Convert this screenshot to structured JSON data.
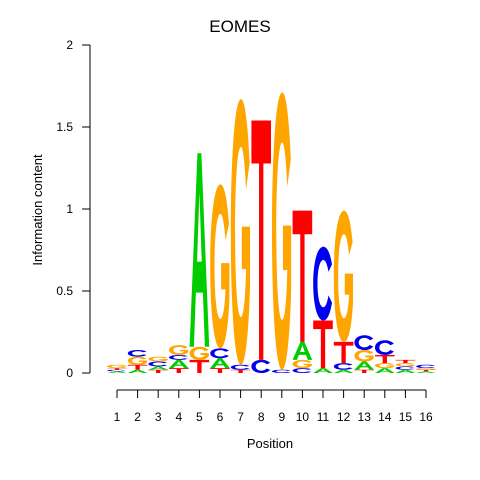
{
  "chart_data": {
    "type": "sequence-logo",
    "title": "EOMES",
    "xlabel": "Position",
    "ylabel": "Information content",
    "ylim": [
      0,
      2
    ],
    "yticks": [
      "0",
      "0.5",
      "1",
      "1.5",
      "2"
    ],
    "positions": [
      "1",
      "2",
      "3",
      "4",
      "5",
      "6",
      "7",
      "8",
      "9",
      "10",
      "11",
      "12",
      "13",
      "14",
      "15",
      "16"
    ],
    "colors": {
      "A": "#00cc00",
      "C": "#0000ee",
      "G": "#ffa500",
      "T": "#ff0000"
    },
    "stacks": [
      [
        {
          "l": "A",
          "v": 0.01
        },
        {
          "l": "C",
          "v": 0.01
        },
        {
          "l": "T",
          "v": 0.01
        },
        {
          "l": "G",
          "v": 0.02
        }
      ],
      [
        {
          "l": "A",
          "v": 0.02
        },
        {
          "l": "T",
          "v": 0.03
        },
        {
          "l": "G",
          "v": 0.05
        },
        {
          "l": "C",
          "v": 0.04
        }
      ],
      [
        {
          "l": "T",
          "v": 0.02
        },
        {
          "l": "A",
          "v": 0.02
        },
        {
          "l": "C",
          "v": 0.03
        },
        {
          "l": "G",
          "v": 0.03
        }
      ],
      [
        {
          "l": "T",
          "v": 0.03
        },
        {
          "l": "A",
          "v": 0.05
        },
        {
          "l": "C",
          "v": 0.03
        },
        {
          "l": "G",
          "v": 0.06
        }
      ],
      [
        {
          "l": "T",
          "v": 0.08
        },
        {
          "l": "G",
          "v": 0.08
        },
        {
          "l": "A",
          "v": 1.18
        }
      ],
      [
        {
          "l": "T",
          "v": 0.03
        },
        {
          "l": "A",
          "v": 0.06
        },
        {
          "l": "C",
          "v": 0.06
        },
        {
          "l": "G",
          "v": 1.0
        }
      ],
      [
        {
          "l": "T",
          "v": 0.02
        },
        {
          "l": "C",
          "v": 0.03
        },
        {
          "l": "G",
          "v": 1.62
        }
      ],
      [
        {
          "l": "C",
          "v": 0.08
        },
        {
          "l": "T",
          "v": 1.46
        }
      ],
      [
        {
          "l": "C",
          "v": 0.02
        },
        {
          "l": "G",
          "v": 1.69
        }
      ],
      [
        {
          "l": "C",
          "v": 0.03
        },
        {
          "l": "G",
          "v": 0.05
        },
        {
          "l": "A",
          "v": 0.11
        },
        {
          "l": "T",
          "v": 0.8
        }
      ],
      [
        {
          "l": "A",
          "v": 0.03
        },
        {
          "l": "T",
          "v": 0.29
        },
        {
          "l": "C",
          "v": 0.45
        }
      ],
      [
        {
          "l": "A",
          "v": 0.02
        },
        {
          "l": "C",
          "v": 0.04
        },
        {
          "l": "T",
          "v": 0.13
        },
        {
          "l": "G",
          "v": 0.8
        }
      ],
      [
        {
          "l": "T",
          "v": 0.02
        },
        {
          "l": "A",
          "v": 0.05
        },
        {
          "l": "G",
          "v": 0.07
        },
        {
          "l": "C",
          "v": 0.09
        }
      ],
      [
        {
          "l": "A",
          "v": 0.03
        },
        {
          "l": "G",
          "v": 0.03
        },
        {
          "l": "T",
          "v": 0.05
        },
        {
          "l": "C",
          "v": 0.09
        }
      ],
      [
        {
          "l": "A",
          "v": 0.02
        },
        {
          "l": "C",
          "v": 0.02
        },
        {
          "l": "G",
          "v": 0.02
        },
        {
          "l": "T",
          "v": 0.02
        }
      ],
      [
        {
          "l": "A",
          "v": 0.01
        },
        {
          "l": "T",
          "v": 0.01
        },
        {
          "l": "G",
          "v": 0.01
        },
        {
          "l": "C",
          "v": 0.02
        }
      ]
    ]
  }
}
